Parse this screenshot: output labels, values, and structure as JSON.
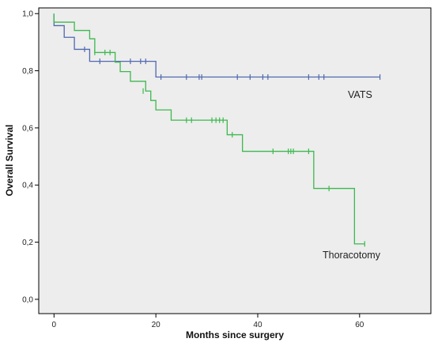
{
  "chart_data": {
    "type": "line",
    "title": "",
    "xlabel": "Months since surgery",
    "ylabel": "Overall Survival",
    "xlim": [
      -3,
      74
    ],
    "ylim": [
      -0.05,
      1.02
    ],
    "x_ticks": [
      0,
      20,
      40,
      60
    ],
    "y_ticks": [
      0.0,
      0.2,
      0.4,
      0.6,
      0.8,
      1.0
    ],
    "y_tick_labels": [
      "0,0",
      "0,2",
      "0,4",
      "0,6",
      "0,8",
      "1,0"
    ],
    "grid": false,
    "series": [
      {
        "name": "VATS",
        "color": "#5068b0",
        "step_x": [
          0,
          0,
          2,
          4,
          7,
          20,
          64
        ],
        "step_y": [
          1.0,
          0.958,
          0.917,
          0.875,
          0.833,
          0.778,
          0.778
        ],
        "censored_x": [
          6,
          9,
          15,
          17,
          18,
          21,
          26,
          28.5,
          29,
          36,
          38.5,
          41,
          42,
          50,
          52,
          53,
          64
        ],
        "censored_y": [
          0.875,
          0.833,
          0.833,
          0.833,
          0.833,
          0.778,
          0.778,
          0.778,
          0.778,
          0.778,
          0.778,
          0.778,
          0.778,
          0.778,
          0.778,
          0.778,
          0.778
        ]
      },
      {
        "name": "Thoracotomy",
        "color": "#3db84f",
        "step_x": [
          0,
          0,
          4,
          7,
          8,
          12,
          13,
          15,
          18,
          19,
          20,
          23,
          34,
          37,
          51,
          59,
          61
        ],
        "step_y": [
          1.0,
          0.97,
          0.941,
          0.912,
          0.864,
          0.83,
          0.797,
          0.763,
          0.729,
          0.696,
          0.663,
          0.627,
          0.576,
          0.518,
          0.388,
          0.194,
          0.194
        ],
        "censored_x": [
          8,
          10,
          11,
          17.5,
          26,
          27,
          31,
          31.8,
          32.5,
          33.2,
          35,
          43,
          46,
          46.5,
          47,
          50,
          54,
          61
        ],
        "censored_y": [
          0.864,
          0.864,
          0.864,
          0.729,
          0.627,
          0.627,
          0.627,
          0.627,
          0.627,
          0.627,
          0.576,
          0.518,
          0.518,
          0.518,
          0.518,
          0.518,
          0.388,
          0.194
        ]
      }
    ]
  },
  "labels": {
    "vats": "VATS",
    "thoracotomy": "Thoracotomy"
  },
  "colors": {
    "plot_background": "#ededed",
    "frame": "#000000"
  }
}
